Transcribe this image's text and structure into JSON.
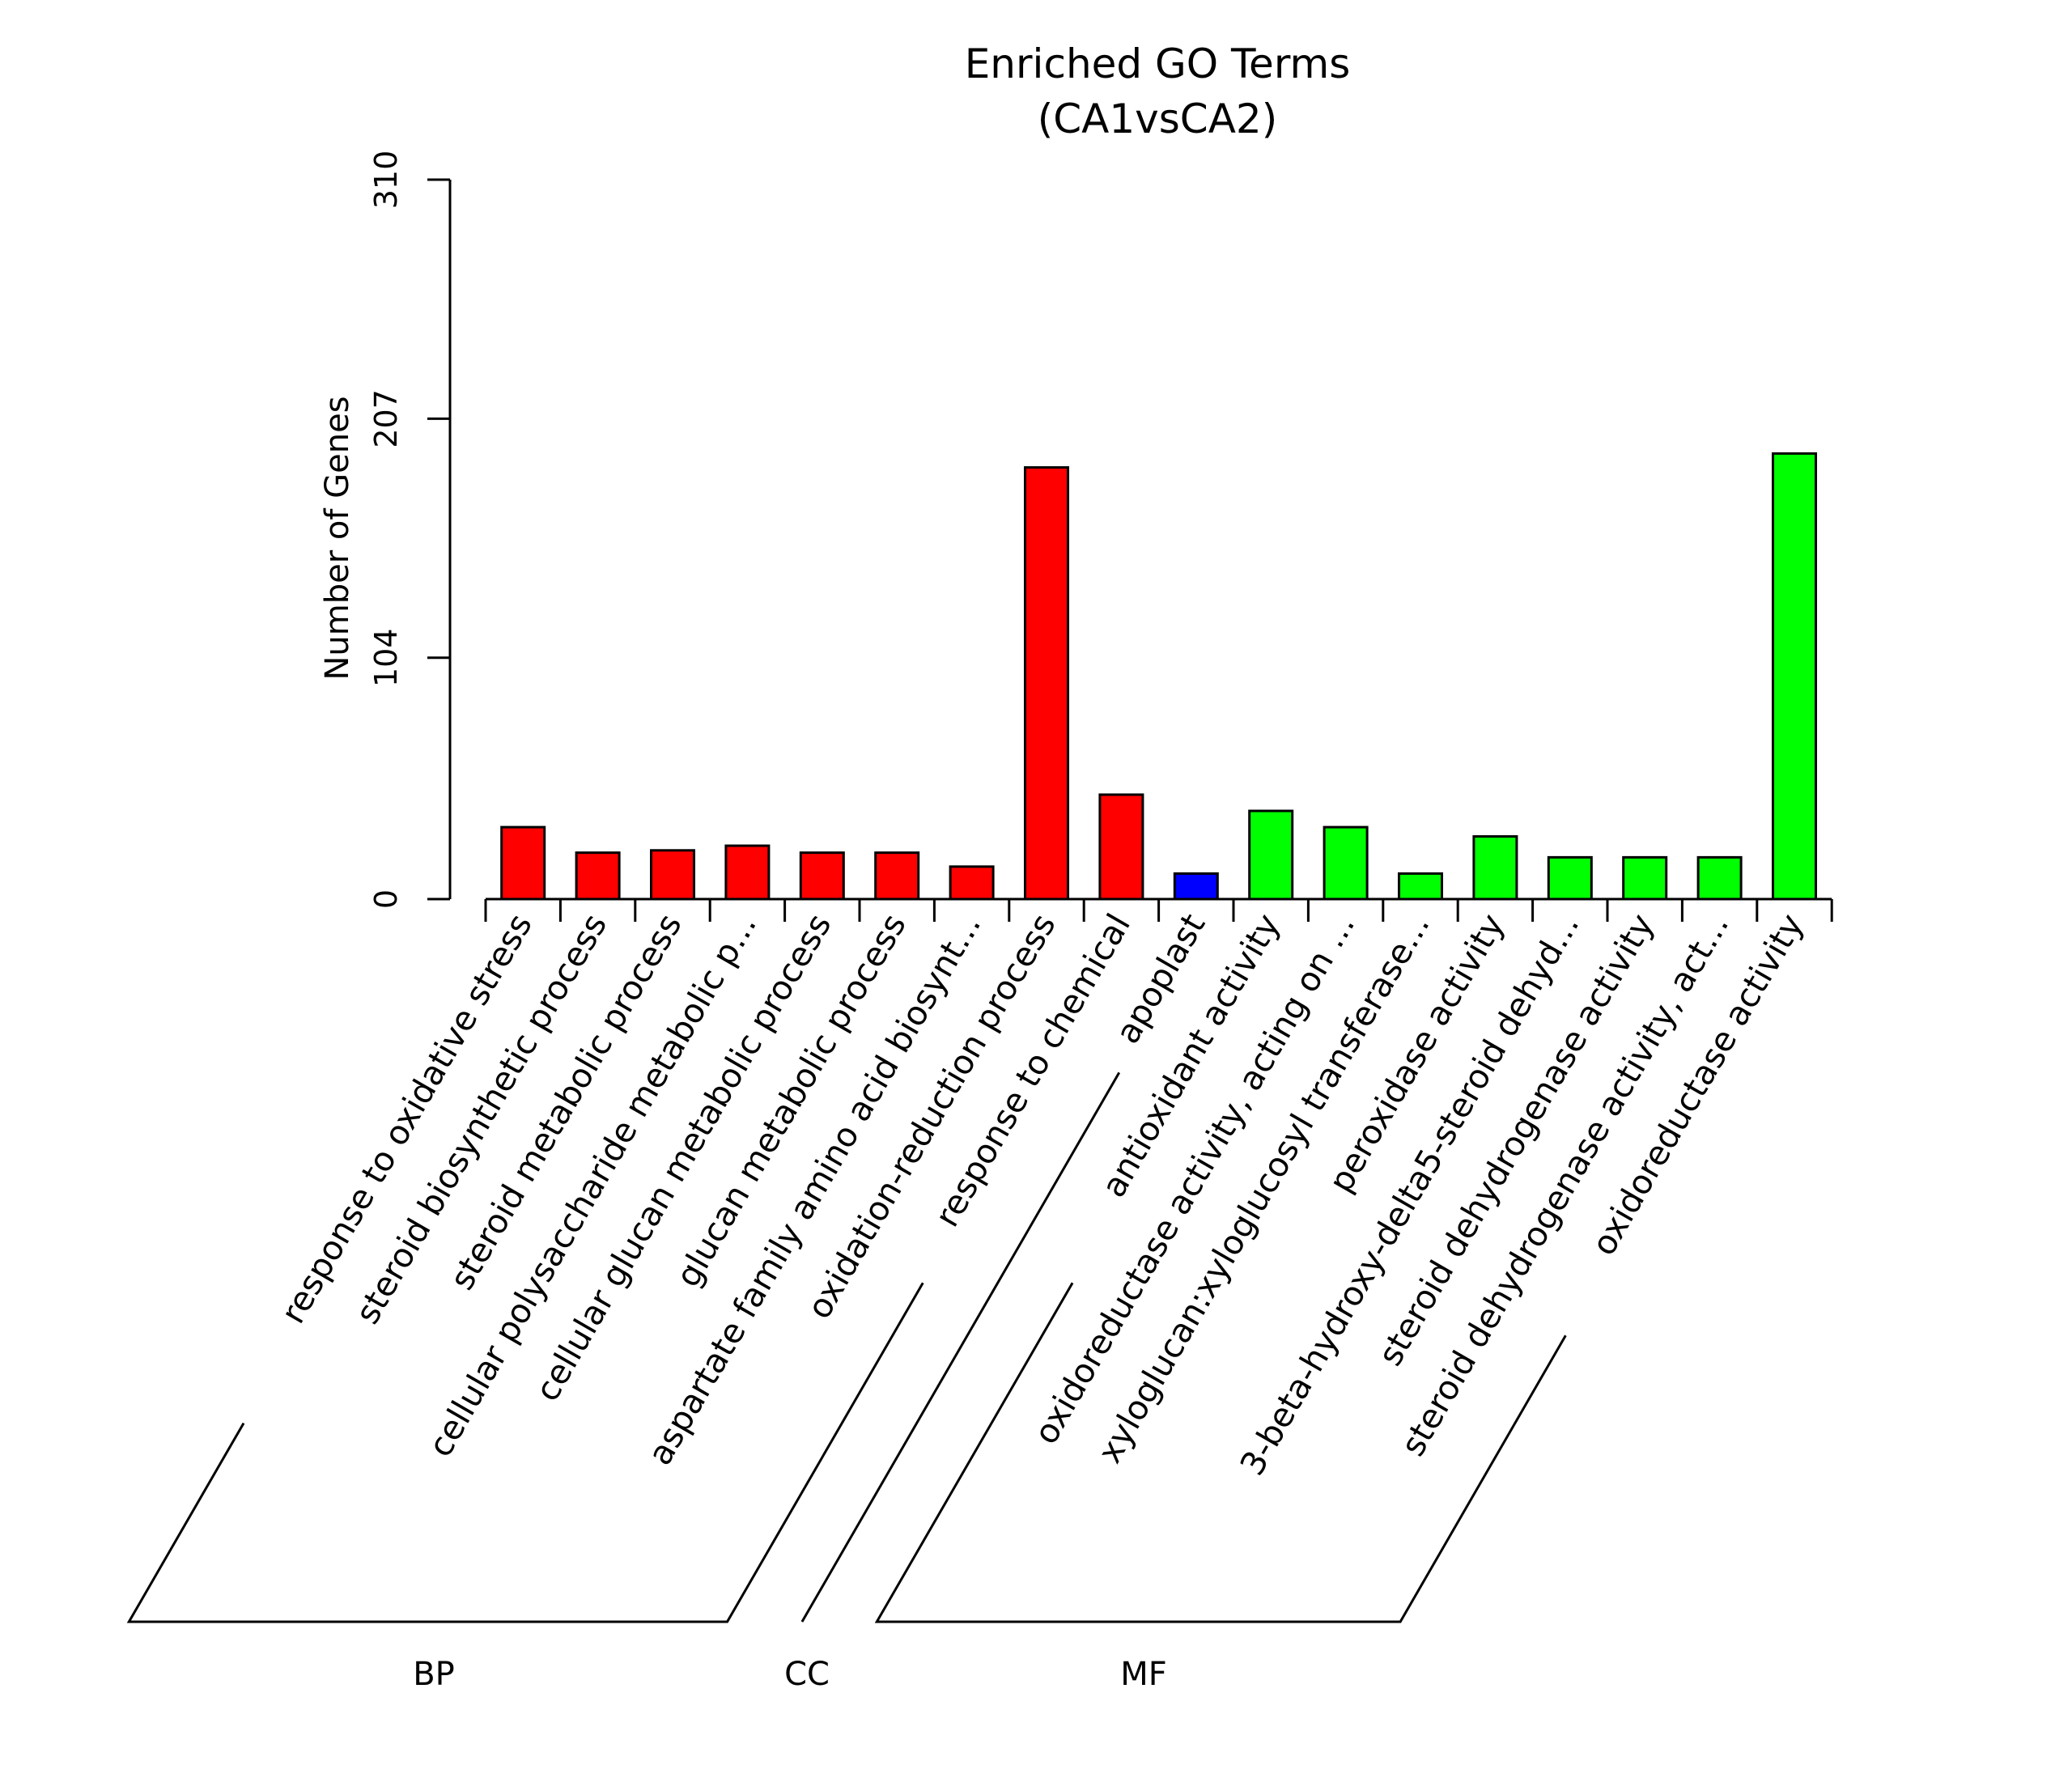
{
  "chart_data": {
    "type": "bar",
    "title": "Enriched GO Terms",
    "subtitle": "(CA1vsCA2)",
    "ylabel": "Number of Genes",
    "xlabel": "",
    "ylim": [
      0,
      310
    ],
    "yticks": [
      0,
      104,
      207,
      310
    ],
    "grid": false,
    "legend": "none",
    "categories": [
      "response to oxidative stress",
      "steroid biosynthetic process",
      "steroid metabolic process",
      "cellular polysaccharide metabolic p...",
      "cellular glucan metabolic process",
      "glucan metabolic process",
      "aspartate family amino acid biosynt...",
      "oxidation-reduction process",
      "response to chemical",
      "apoplast",
      "antioxidant activity",
      "oxidoreductase activity, acting on ...",
      "xyloglucan:xyloglucosyl transferase...",
      "peroxidase activity",
      "3-beta-hydroxy-delta5-steroid dehyd...",
      "steroid dehydrogenase activity",
      "steroid dehydrogenase activity, act...",
      "oxidoreductase activity"
    ],
    "values": [
      31,
      20,
      21,
      23,
      20,
      20,
      14,
      186,
      45,
      11,
      38,
      31,
      11,
      27,
      18,
      18,
      18,
      192
    ],
    "groups": [
      {
        "name": "BP",
        "start": 0,
        "end": 8,
        "color": "#ff0000"
      },
      {
        "name": "CC",
        "start": 9,
        "end": 9,
        "color": "#0000ff"
      },
      {
        "name": "MF",
        "start": 10,
        "end": 17,
        "color": "#00ff00"
      }
    ]
  }
}
